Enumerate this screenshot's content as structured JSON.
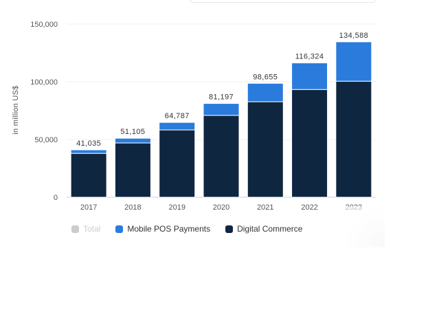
{
  "chart_data": {
    "type": "bar",
    "stacked": true,
    "categories": [
      "2017",
      "2018",
      "2019",
      "2020",
      "2021",
      "2022",
      "2023"
    ],
    "series": [
      {
        "name": "Digital Commerce",
        "color": "#0f2640",
        "values": [
          38000,
          47000,
          58300,
          70900,
          82700,
          93300,
          100500
        ]
      },
      {
        "name": "Mobile POS Payments",
        "color": "#2a7bdc",
        "values": [
          3035,
          4105,
          6487,
          10297,
          15955,
          23024,
          34088
        ]
      }
    ],
    "totals": [
      "41,035",
      "51,105",
      "64,787",
      "81,197",
      "98,655",
      "116,324",
      "134,588"
    ],
    "ylabel": "in million US$",
    "ylim": [
      0,
      150000
    ],
    "yticks": [
      0,
      50000,
      100000,
      150000
    ],
    "ytick_labels": [
      "0",
      "50,000",
      "100,000",
      "150,000"
    ],
    "grid": true,
    "legend_position": "bottom-left"
  },
  "legend": {
    "items": [
      {
        "label": "Total",
        "color": "#cccccc",
        "muted": true
      },
      {
        "label": "Mobile POS Payments",
        "color": "#2a7bdc",
        "muted": false
      },
      {
        "label": "Digital Commerce",
        "color": "#0f2640",
        "muted": false
      }
    ]
  }
}
